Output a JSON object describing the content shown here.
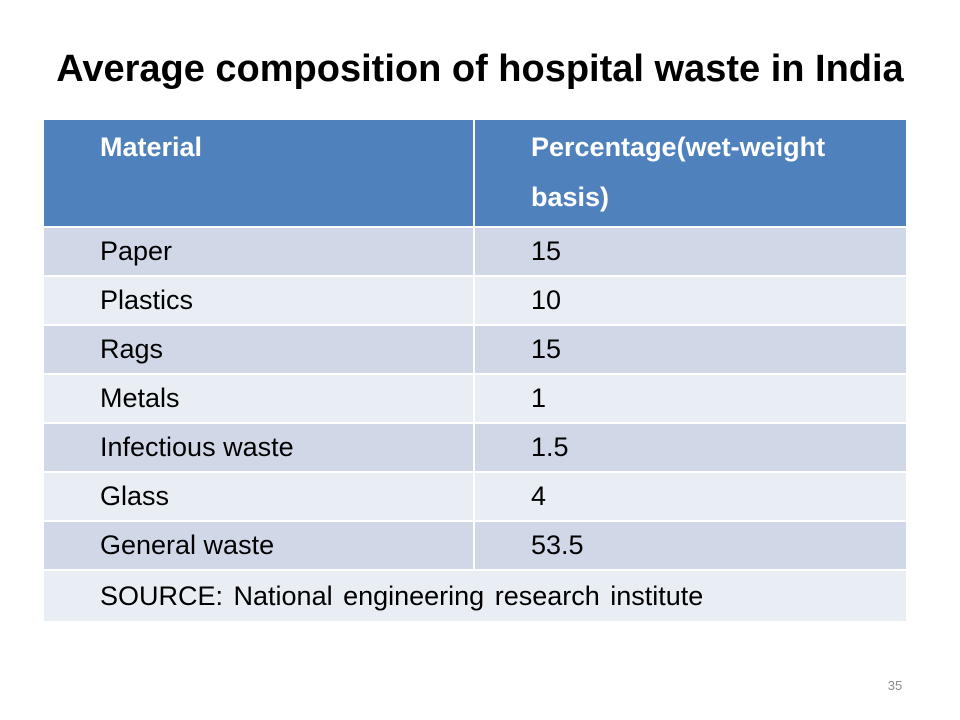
{
  "slide": {
    "title": "Average composition of hospital waste in India",
    "page_number": "35"
  },
  "table": {
    "headers": [
      "Material",
      "Percentage(wet-weight basis)"
    ],
    "rows": [
      [
        "Paper",
        "15"
      ],
      [
        "Plastics",
        "10"
      ],
      [
        "Rags",
        "15"
      ],
      [
        "Metals",
        "1"
      ],
      [
        "Infectious waste",
        "1.5"
      ],
      [
        "Glass",
        "4"
      ],
      [
        "General waste",
        "53.5"
      ]
    ],
    "source": "SOURCE: National  engineering  research institute"
  },
  "colors": {
    "header_bg": "#4f81bd",
    "row_odd_bg": "#d0d8e8",
    "row_even_bg": "#e9edf4"
  }
}
